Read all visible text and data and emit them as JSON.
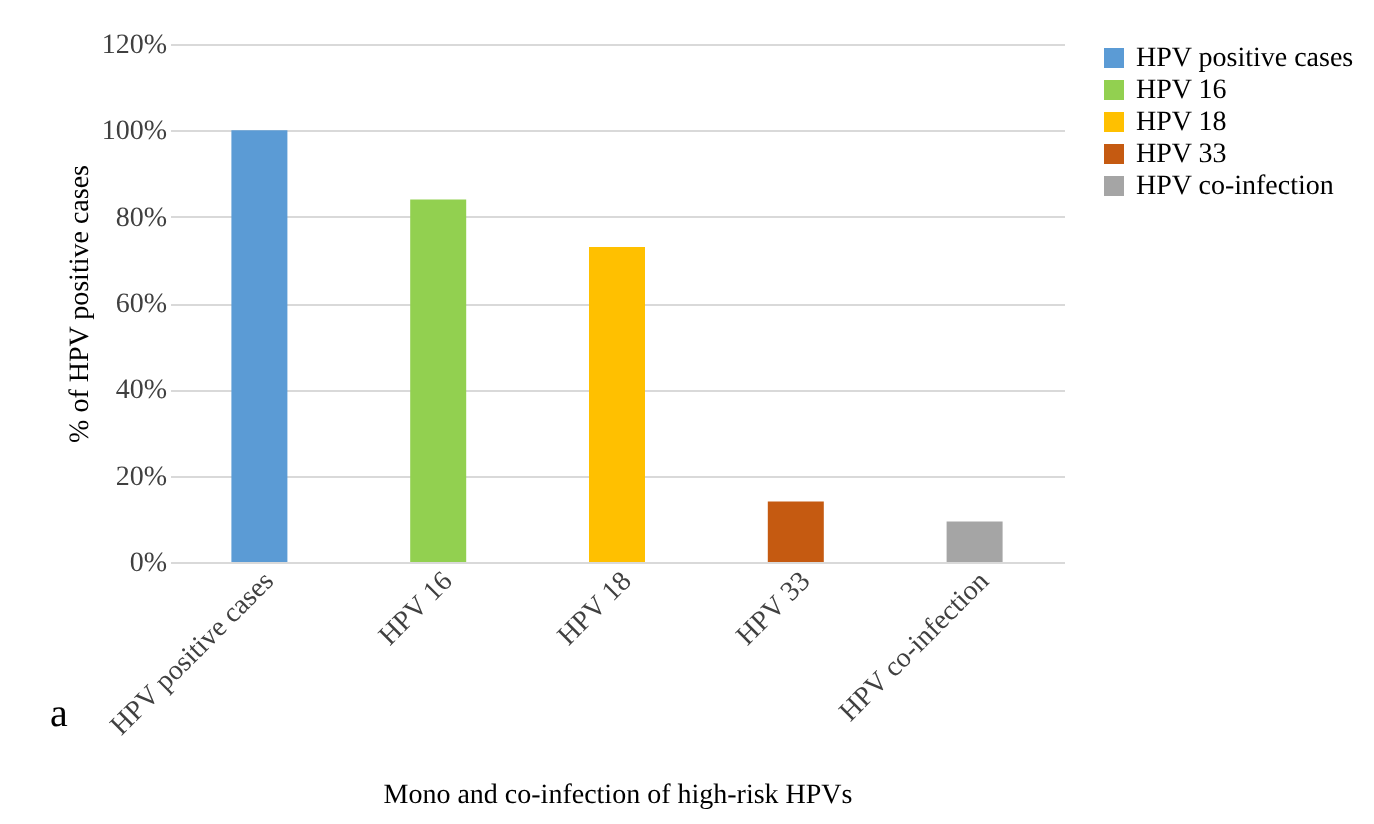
{
  "chart_data": {
    "type": "bar",
    "xlabel": "Mono and co-infection of high-risk HPVs",
    "ylabel": "% of HPV positive cases",
    "categories": [
      "HPV positive cases",
      "HPV 16",
      "HPV 18",
      "HPV 33",
      "HPV co-infection"
    ],
    "series": [
      {
        "name": "HPV positive cases",
        "color": "#5b9bd5",
        "values": [
          100,
          null,
          null,
          null,
          null
        ]
      },
      {
        "name": "HPV 16",
        "color": "#92d050",
        "values": [
          null,
          84,
          null,
          null,
          null
        ]
      },
      {
        "name": "HPV 18",
        "color": "#ffc000",
        "values": [
          null,
          null,
          73,
          null,
          null
        ]
      },
      {
        "name": "HPV 33",
        "color": "#c55a11",
        "values": [
          null,
          null,
          null,
          14,
          null
        ]
      },
      {
        "name": "HPV co-infection",
        "color": "#a5a5a5",
        "values": [
          null,
          null,
          null,
          null,
          9.4
        ]
      }
    ],
    "ylim": [
      0,
      120
    ],
    "yticks": [
      {
        "value": 0,
        "label": "0%"
      },
      {
        "value": 20,
        "label": "20%"
      },
      {
        "value": 40,
        "label": "40%"
      },
      {
        "value": 60,
        "label": "60%"
      },
      {
        "value": 80,
        "label": "80%"
      },
      {
        "value": 100,
        "label": "100%"
      },
      {
        "value": 120,
        "label": "120%"
      }
    ],
    "grid": "y",
    "legend": "right",
    "annotations": [
      "a"
    ]
  }
}
